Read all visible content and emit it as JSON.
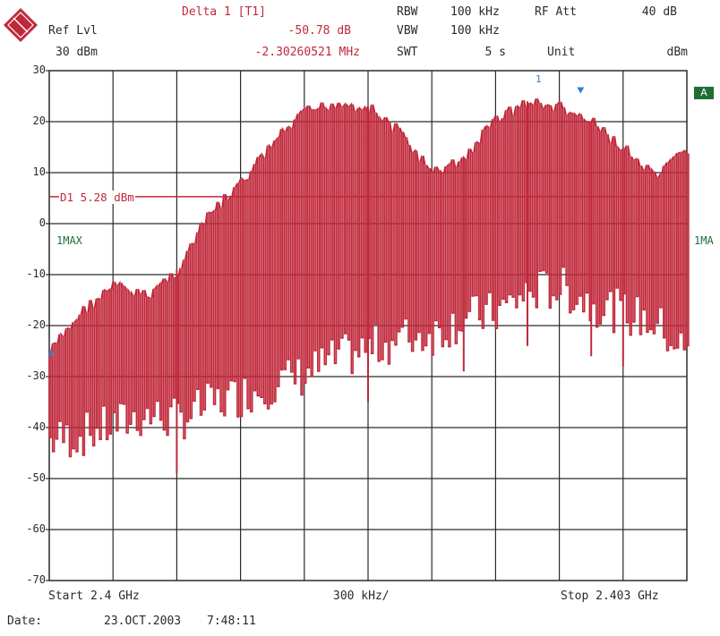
{
  "header": {
    "ref_lvl_label": "Ref Lvl",
    "ref_lvl_value": "30 dBm",
    "marker_title": "Delta 1 [T1]",
    "marker_level": "-50.78 dB",
    "marker_freq": "-2.30260521 MHz",
    "rbw_label": "RBW",
    "rbw_value": "100 kHz",
    "vbw_label": "VBW",
    "vbw_value": "100 kHz",
    "swt_label": "SWT",
    "swt_value": "5 s",
    "rfatt_label": "RF Att",
    "rfatt_value": "40 dB",
    "unit_label": "Unit",
    "unit_value": "dBm"
  },
  "side_labels": {
    "trace_left": "1MAX",
    "trace_right": "1MA",
    "flag": "A",
    "marker_num": "1",
    "display_line": "D1 5.28 dBm"
  },
  "footer": {
    "start": "Start 2.4 GHz",
    "span": "300 kHz/",
    "stop": "Stop 2.403 GHz",
    "date_label": "Date:",
    "date_value": "23.OCT.2003",
    "time_value": "7:48:11"
  },
  "colors": {
    "trace": "#c0283a",
    "grid": "#2a2a2a",
    "marker": "#2f7fd6",
    "flag": "#1f6e36"
  },
  "chart_data": {
    "type": "line",
    "title": "",
    "xlabel": "",
    "ylabel": "",
    "x_unit": "GHz",
    "y_unit": "dBm",
    "xlim": [
      2.4,
      2.403
    ],
    "ylim": [
      -70,
      30
    ],
    "yticks": [
      "30",
      "20",
      "10",
      "0",
      "-10",
      "-20",
      "-30",
      "-40",
      "-50",
      "-60",
      "-70"
    ],
    "grid": true,
    "display_line_dbm": 5.28,
    "marker_1": {
      "x": 2.4025,
      "y": 25
    },
    "series": [
      {
        "name": "1MAX",
        "x": [
          2.4,
          2.40015,
          2.4003,
          2.40045,
          2.4006,
          2.40075,
          2.4009,
          2.40105,
          2.4012,
          2.40135,
          2.4015,
          2.40165,
          2.4018,
          2.40195,
          2.4021,
          2.40225,
          2.4024,
          2.40255,
          2.4027,
          2.40285,
          2.403
        ],
        "upper": [
          -24,
          -16,
          -11,
          -13,
          -8,
          3,
          9,
          17,
          23,
          25,
          24,
          19,
          11,
          14,
          22,
          25,
          24,
          21,
          16,
          10,
          16
        ],
        "lower": [
          -47,
          -46,
          -44,
          -42,
          -43,
          -40,
          -38,
          -36,
          -34,
          -31,
          -29,
          -27,
          -26,
          -23,
          -22,
          -18,
          -17,
          -20,
          -22,
          -24,
          -30
        ]
      }
    ]
  }
}
